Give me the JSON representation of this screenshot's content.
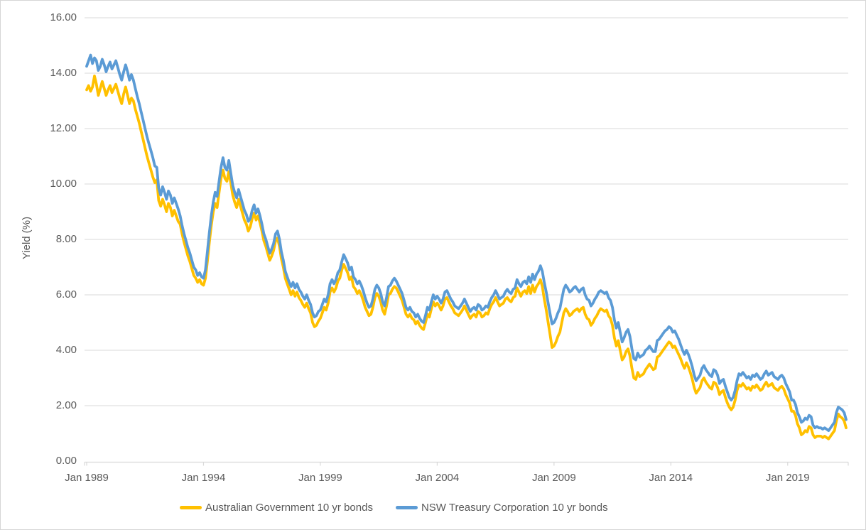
{
  "window": {
    "background": "#ffffff",
    "border_color": "#d6d6d6"
  },
  "axes": {
    "y_title": "Yield (%)",
    "y_tick_labels": [
      "16.00",
      "14.00",
      "12.00",
      "10.00",
      "8.00",
      "6.00",
      "4.00",
      "2.00",
      "0.00"
    ],
    "x_tick_labels": [
      "Jan 1989",
      "Jan 1994",
      "Jan 1999",
      "Jan 2004",
      "Jan 2009",
      "Jan 2014",
      "Jan 2019"
    ]
  },
  "legend": {
    "items": [
      {
        "label": "Australian Government 10 yr bonds",
        "color": "#FFC000"
      },
      {
        "label": "NSW Treasury Corporation 10 yr bonds",
        "color": "#5B9BD5"
      }
    ]
  },
  "colors": {
    "series_gov": "#FFC000",
    "series_nsw": "#5B9BD5",
    "gridline": "#D9D9D9",
    "axis_line": "#D9D9D9",
    "axis_text": "#595959"
  },
  "chart_data": {
    "type": "line",
    "frequency": "monthly",
    "x_start": "Jan 1989",
    "x_end": "Jul 2021",
    "ylabel": "Yield (%)",
    "ylim": [
      0,
      16
    ],
    "ytick_step": 2,
    "grid": true,
    "legend_position": "bottom",
    "x_tick_month_indices": [
      0,
      60,
      120,
      180,
      240,
      300,
      360
    ],
    "x_tick_labels": [
      "Jan 1989",
      "Jan 1994",
      "Jan 1999",
      "Jan 2004",
      "Jan 2009",
      "Jan 2014",
      "Jan 2019"
    ],
    "series": [
      {
        "name": "Australian Government 10 yr bonds",
        "color": "#FFC000",
        "values": [
          13.4,
          13.55,
          13.35,
          13.5,
          13.9,
          13.6,
          13.2,
          13.45,
          13.7,
          13.45,
          13.2,
          13.4,
          13.55,
          13.3,
          13.45,
          13.6,
          13.35,
          13.1,
          12.9,
          13.25,
          13.5,
          13.2,
          12.9,
          13.1,
          13.0,
          12.7,
          12.45,
          12.2,
          11.9,
          11.6,
          11.3,
          11.0,
          10.75,
          10.5,
          10.25,
          10.05,
          10.15,
          9.4,
          9.2,
          9.45,
          9.25,
          9.0,
          9.3,
          9.15,
          8.85,
          9.05,
          8.85,
          8.65,
          8.55,
          8.2,
          7.9,
          7.65,
          7.4,
          7.2,
          6.95,
          6.7,
          6.6,
          6.45,
          6.55,
          6.4,
          6.35,
          6.6,
          7.2,
          7.9,
          8.5,
          9.0,
          9.3,
          9.15,
          9.7,
          10.2,
          10.5,
          10.2,
          10.1,
          10.45,
          10.05,
          9.6,
          9.35,
          9.15,
          9.45,
          9.2,
          8.95,
          8.7,
          8.55,
          8.3,
          8.45,
          8.75,
          8.95,
          8.7,
          8.85,
          8.6,
          8.3,
          7.95,
          7.75,
          7.5,
          7.25,
          7.4,
          7.6,
          7.95,
          8.05,
          7.75,
          7.3,
          7.0,
          6.6,
          6.4,
          6.2,
          6.0,
          6.15,
          5.95,
          6.1,
          5.9,
          5.8,
          5.65,
          5.55,
          5.7,
          5.5,
          5.35,
          5.0,
          4.85,
          4.9,
          5.05,
          5.15,
          5.35,
          5.55,
          5.45,
          5.7,
          6.1,
          6.25,
          6.1,
          6.25,
          6.5,
          6.6,
          6.9,
          7.1,
          6.95,
          6.8,
          6.55,
          6.65,
          6.3,
          6.2,
          6.05,
          6.15,
          6.0,
          5.8,
          5.55,
          5.4,
          5.25,
          5.3,
          5.55,
          5.9,
          6.05,
          5.95,
          5.75,
          5.45,
          5.3,
          5.6,
          6.0,
          6.05,
          6.2,
          6.3,
          6.25,
          6.1,
          5.95,
          5.8,
          5.55,
          5.3,
          5.2,
          5.3,
          5.15,
          5.1,
          4.95,
          5.05,
          4.9,
          4.8,
          4.75,
          5.0,
          5.3,
          5.2,
          5.5,
          5.75,
          5.6,
          5.7,
          5.6,
          5.45,
          5.6,
          5.85,
          5.9,
          5.75,
          5.6,
          5.5,
          5.35,
          5.3,
          5.25,
          5.35,
          5.45,
          5.6,
          5.45,
          5.3,
          5.15,
          5.25,
          5.3,
          5.2,
          5.4,
          5.35,
          5.2,
          5.25,
          5.35,
          5.3,
          5.5,
          5.65,
          5.75,
          5.9,
          5.75,
          5.6,
          5.65,
          5.7,
          5.85,
          5.9,
          5.8,
          5.75,
          5.9,
          5.95,
          6.25,
          6.1,
          5.95,
          6.1,
          6.15,
          6.05,
          6.3,
          6.05,
          6.35,
          6.1,
          6.3,
          6.4,
          6.55,
          6.3,
          5.85,
          5.45,
          5.0,
          4.55,
          4.1,
          4.15,
          4.3,
          4.5,
          4.65,
          5.0,
          5.35,
          5.5,
          5.4,
          5.25,
          5.3,
          5.4,
          5.45,
          5.5,
          5.4,
          5.5,
          5.55,
          5.3,
          5.15,
          5.1,
          4.9,
          5.0,
          5.15,
          5.25,
          5.4,
          5.5,
          5.45,
          5.4,
          5.45,
          5.25,
          5.15,
          4.9,
          4.45,
          4.15,
          4.35,
          4.0,
          3.65,
          3.75,
          3.95,
          4.05,
          3.8,
          3.35,
          3.0,
          2.95,
          3.2,
          3.05,
          3.1,
          3.15,
          3.3,
          3.4,
          3.5,
          3.4,
          3.3,
          3.35,
          3.75,
          3.8,
          3.9,
          4.0,
          4.1,
          4.2,
          4.3,
          4.25,
          4.1,
          4.15,
          4.0,
          3.85,
          3.7,
          3.5,
          3.35,
          3.55,
          3.4,
          3.2,
          2.95,
          2.65,
          2.45,
          2.55,
          2.65,
          2.9,
          3.0,
          2.85,
          2.75,
          2.65,
          2.6,
          2.85,
          2.8,
          2.65,
          2.4,
          2.5,
          2.55,
          2.3,
          2.1,
          1.95,
          1.85,
          1.95,
          2.2,
          2.55,
          2.75,
          2.7,
          2.8,
          2.7,
          2.6,
          2.65,
          2.55,
          2.7,
          2.65,
          2.75,
          2.65,
          2.55,
          2.6,
          2.75,
          2.85,
          2.7,
          2.75,
          2.8,
          2.65,
          2.6,
          2.55,
          2.65,
          2.7,
          2.6,
          2.4,
          2.25,
          2.1,
          1.8,
          1.8,
          1.65,
          1.35,
          1.2,
          0.95,
          1.0,
          1.1,
          1.05,
          1.25,
          1.2,
          0.95,
          0.85,
          0.9,
          0.9,
          0.9,
          0.85,
          0.9,
          0.85,
          0.8,
          0.9,
          1.0,
          1.1,
          1.45,
          1.7,
          1.6,
          1.55,
          1.45,
          1.2
        ]
      },
      {
        "name": "NSW Treasury Corporation 10 yr bonds",
        "color": "#5B9BD5",
        "values": [
          14.25,
          14.45,
          14.65,
          14.35,
          14.55,
          14.45,
          14.1,
          14.25,
          14.5,
          14.3,
          14.05,
          14.25,
          14.4,
          14.15,
          14.3,
          14.45,
          14.2,
          13.95,
          13.75,
          14.05,
          14.3,
          14.05,
          13.75,
          13.95,
          13.75,
          13.45,
          13.15,
          12.9,
          12.6,
          12.3,
          12.0,
          11.7,
          11.45,
          11.2,
          10.95,
          10.65,
          10.6,
          9.85,
          9.6,
          9.9,
          9.7,
          9.45,
          9.75,
          9.6,
          9.3,
          9.5,
          9.3,
          9.1,
          8.85,
          8.5,
          8.2,
          7.95,
          7.7,
          7.5,
          7.25,
          7.0,
          6.9,
          6.7,
          6.8,
          6.65,
          6.6,
          6.9,
          7.55,
          8.25,
          8.85,
          9.35,
          9.7,
          9.55,
          10.1,
          10.6,
          10.95,
          10.6,
          10.5,
          10.85,
          10.4,
          9.95,
          9.7,
          9.5,
          9.8,
          9.55,
          9.3,
          9.05,
          8.9,
          8.65,
          8.75,
          9.05,
          9.25,
          8.95,
          9.1,
          8.85,
          8.55,
          8.2,
          8.0,
          7.75,
          7.5,
          7.65,
          7.85,
          8.2,
          8.3,
          8.0,
          7.55,
          7.25,
          6.85,
          6.65,
          6.45,
          6.3,
          6.45,
          6.25,
          6.4,
          6.2,
          6.1,
          5.95,
          5.85,
          6.0,
          5.8,
          5.65,
          5.35,
          5.2,
          5.25,
          5.4,
          5.45,
          5.65,
          5.85,
          5.75,
          6.0,
          6.4,
          6.55,
          6.4,
          6.55,
          6.8,
          6.9,
          7.2,
          7.45,
          7.3,
          7.15,
          6.9,
          7.0,
          6.65,
          6.55,
          6.4,
          6.5,
          6.35,
          6.15,
          5.9,
          5.7,
          5.55,
          5.6,
          5.85,
          6.2,
          6.35,
          6.25,
          6.05,
          5.75,
          5.6,
          5.9,
          6.3,
          6.35,
          6.5,
          6.6,
          6.5,
          6.35,
          6.2,
          6.05,
          5.8,
          5.55,
          5.45,
          5.55,
          5.4,
          5.35,
          5.2,
          5.3,
          5.15,
          5.05,
          5.0,
          5.25,
          5.55,
          5.45,
          5.75,
          6.0,
          5.85,
          5.95,
          5.85,
          5.7,
          5.85,
          6.1,
          6.15,
          6.0,
          5.85,
          5.75,
          5.6,
          5.55,
          5.5,
          5.6,
          5.7,
          5.85,
          5.7,
          5.55,
          5.4,
          5.5,
          5.55,
          5.45,
          5.65,
          5.6,
          5.45,
          5.5,
          5.6,
          5.55,
          5.75,
          5.9,
          6.0,
          6.15,
          6.0,
          5.85,
          5.9,
          5.95,
          6.1,
          6.2,
          6.1,
          6.05,
          6.2,
          6.25,
          6.55,
          6.4,
          6.3,
          6.45,
          6.5,
          6.4,
          6.65,
          6.45,
          6.75,
          6.55,
          6.75,
          6.85,
          7.05,
          6.85,
          6.45,
          6.1,
          5.7,
          5.3,
          4.95,
          5.0,
          5.15,
          5.35,
          5.5,
          5.85,
          6.2,
          6.35,
          6.25,
          6.1,
          6.15,
          6.25,
          6.3,
          6.2,
          6.1,
          6.2,
          6.25,
          6.0,
          5.85,
          5.8,
          5.6,
          5.7,
          5.85,
          5.95,
          6.1,
          6.15,
          6.1,
          6.05,
          6.1,
          5.9,
          5.8,
          5.55,
          5.1,
          4.8,
          5.0,
          4.65,
          4.3,
          4.45,
          4.65,
          4.75,
          4.5,
          4.05,
          3.7,
          3.65,
          3.9,
          3.75,
          3.8,
          3.85,
          4.0,
          4.05,
          4.15,
          4.05,
          3.95,
          3.95,
          4.35,
          4.4,
          4.5,
          4.6,
          4.7,
          4.75,
          4.85,
          4.8,
          4.65,
          4.7,
          4.55,
          4.4,
          4.2,
          4.0,
          3.85,
          4.0,
          3.85,
          3.65,
          3.4,
          3.1,
          2.9,
          3.0,
          3.1,
          3.35,
          3.45,
          3.3,
          3.2,
          3.1,
          3.05,
          3.3,
          3.25,
          3.1,
          2.8,
          2.9,
          2.95,
          2.7,
          2.5,
          2.3,
          2.2,
          2.3,
          2.55,
          2.9,
          3.15,
          3.1,
          3.2,
          3.1,
          3.0,
          3.05,
          2.95,
          3.1,
          3.05,
          3.15,
          3.05,
          2.95,
          3.0,
          3.15,
          3.25,
          3.1,
          3.15,
          3.2,
          3.05,
          3.0,
          2.95,
          3.05,
          3.1,
          3.0,
          2.8,
          2.65,
          2.5,
          2.2,
          2.2,
          2.05,
          1.75,
          1.6,
          1.4,
          1.45,
          1.55,
          1.5,
          1.65,
          1.6,
          1.3,
          1.2,
          1.25,
          1.2,
          1.2,
          1.15,
          1.2,
          1.15,
          1.1,
          1.2,
          1.3,
          1.4,
          1.75,
          1.95,
          1.9,
          1.85,
          1.75,
          1.5
        ]
      }
    ]
  }
}
